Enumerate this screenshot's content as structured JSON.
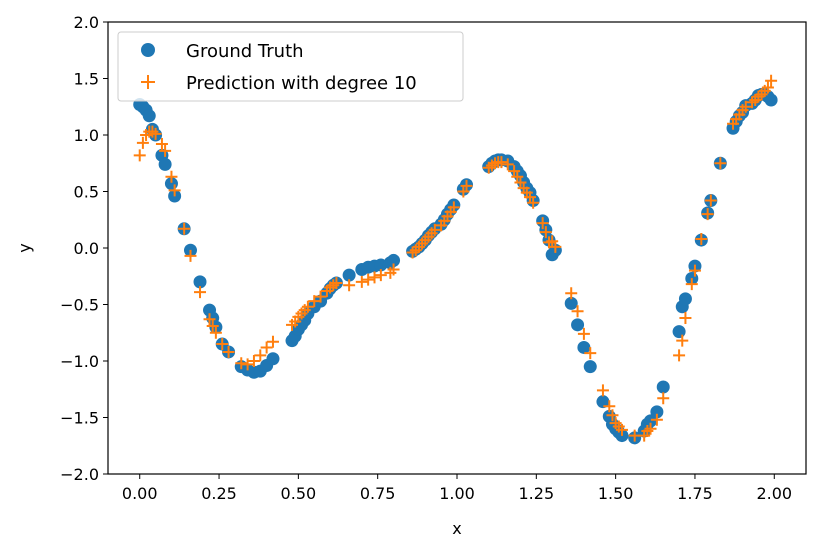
{
  "chart_data": {
    "type": "scatter",
    "title": "",
    "xlabel": "x",
    "ylabel": "y",
    "xlim": [
      -0.1,
      2.1
    ],
    "ylim": [
      -2.0,
      2.0
    ],
    "xticks": [
      0.0,
      0.25,
      0.5,
      0.75,
      1.0,
      1.25,
      1.5,
      1.75,
      2.0
    ],
    "xtick_labels": [
      "0.00",
      "0.25",
      "0.50",
      "0.75",
      "1.00",
      "1.25",
      "1.50",
      "1.75",
      "2.00"
    ],
    "yticks": [
      -2.0,
      -1.5,
      -1.0,
      -0.5,
      0.0,
      0.5,
      1.0,
      1.5,
      2.0
    ],
    "ytick_labels": [
      "−2.0",
      "−1.5",
      "−1.0",
      "−0.5",
      "0.0",
      "0.5",
      "1.0",
      "1.5",
      "2.0"
    ],
    "grid": false,
    "legend_position": "top-left",
    "x": [
      0.0,
      0.01,
      0.02,
      0.03,
      0.04,
      0.05,
      0.07,
      0.08,
      0.1,
      0.11,
      0.14,
      0.16,
      0.19,
      0.22,
      0.23,
      0.24,
      0.26,
      0.28,
      0.32,
      0.34,
      0.36,
      0.38,
      0.4,
      0.42,
      0.48,
      0.49,
      0.5,
      0.51,
      0.52,
      0.53,
      0.55,
      0.57,
      0.59,
      0.6,
      0.61,
      0.62,
      0.66,
      0.7,
      0.72,
      0.74,
      0.76,
      0.79,
      0.8,
      0.86,
      0.87,
      0.88,
      0.89,
      0.9,
      0.91,
      0.92,
      0.93,
      0.95,
      0.96,
      0.97,
      0.98,
      0.99,
      1.02,
      1.03,
      1.1,
      1.11,
      1.12,
      1.13,
      1.14,
      1.16,
      1.18,
      1.19,
      1.2,
      1.21,
      1.22,
      1.23,
      1.24,
      1.27,
      1.28,
      1.29,
      1.3,
      1.31,
      1.36,
      1.38,
      1.4,
      1.42,
      1.46,
      1.48,
      1.49,
      1.5,
      1.51,
      1.52,
      1.56,
      1.59,
      1.6,
      1.61,
      1.63,
      1.65,
      1.7,
      1.71,
      1.72,
      1.74,
      1.75,
      1.77,
      1.79,
      1.8,
      1.83,
      1.87,
      1.88,
      1.89,
      1.9,
      1.91,
      1.93,
      1.94,
      1.95,
      1.96,
      1.97,
      1.98,
      1.99
    ],
    "series": [
      {
        "name": "Ground Truth",
        "marker": "circle",
        "color": "#1f77b4",
        "values": [
          1.27,
          1.25,
          1.22,
          1.17,
          1.05,
          1.0,
          0.82,
          0.74,
          0.57,
          0.46,
          0.17,
          -0.02,
          -0.3,
          -0.55,
          -0.62,
          -0.7,
          -0.85,
          -0.92,
          -1.05,
          -1.08,
          -1.1,
          -1.09,
          -1.04,
          -0.98,
          -0.82,
          -0.78,
          -0.72,
          -0.68,
          -0.64,
          -0.58,
          -0.52,
          -0.47,
          -0.4,
          -0.36,
          -0.33,
          -0.31,
          -0.24,
          -0.19,
          -0.17,
          -0.16,
          -0.15,
          -0.13,
          -0.11,
          -0.03,
          -0.01,
          0.01,
          0.04,
          0.07,
          0.11,
          0.14,
          0.17,
          0.21,
          0.25,
          0.3,
          0.34,
          0.38,
          0.52,
          0.56,
          0.72,
          0.75,
          0.77,
          0.78,
          0.78,
          0.77,
          0.72,
          0.68,
          0.64,
          0.58,
          0.53,
          0.49,
          0.42,
          0.24,
          0.16,
          0.07,
          -0.06,
          -0.02,
          -0.49,
          -0.68,
          -0.88,
          -1.05,
          -1.36,
          -1.49,
          -1.56,
          -1.6,
          -1.63,
          -1.66,
          -1.68,
          -1.62,
          -1.56,
          -1.53,
          -1.45,
          -1.23,
          -0.74,
          -0.52,
          -0.45,
          -0.27,
          -0.16,
          0.07,
          0.31,
          0.42,
          0.75,
          1.06,
          1.12,
          1.17,
          1.2,
          1.26,
          1.28,
          1.31,
          1.35,
          1.36,
          1.36,
          1.34,
          1.31
        ]
      },
      {
        "name": "Prediction with degree 10",
        "marker": "plus",
        "color": "#ff7f0e",
        "values": [
          0.82,
          0.93,
          1.0,
          1.03,
          1.03,
          1.01,
          0.92,
          0.86,
          0.63,
          0.51,
          0.17,
          -0.07,
          -0.39,
          -0.63,
          -0.69,
          -0.75,
          -0.85,
          -0.92,
          -1.02,
          -1.03,
          -1.0,
          -0.95,
          -0.88,
          -0.83,
          -0.68,
          -0.65,
          -0.61,
          -0.58,
          -0.55,
          -0.52,
          -0.47,
          -0.43,
          -0.38,
          -0.35,
          -0.33,
          -0.31,
          -0.33,
          -0.3,
          -0.28,
          -0.26,
          -0.24,
          -0.22,
          -0.19,
          -0.04,
          -0.02,
          0.01,
          0.04,
          0.07,
          0.1,
          0.13,
          0.16,
          0.2,
          0.24,
          0.28,
          0.32,
          0.36,
          0.5,
          0.55,
          0.71,
          0.73,
          0.75,
          0.76,
          0.76,
          0.74,
          0.68,
          0.63,
          0.58,
          0.53,
          0.49,
          0.45,
          0.4,
          0.22,
          0.14,
          0.05,
          0.06,
          0.01,
          -0.4,
          -0.56,
          -0.76,
          -0.93,
          -1.26,
          -1.4,
          -1.48,
          -1.55,
          -1.58,
          -1.61,
          -1.66,
          -1.66,
          -1.62,
          -1.6,
          -1.52,
          -1.33,
          -0.95,
          -0.82,
          -0.62,
          -0.32,
          -0.2,
          0.08,
          0.3,
          0.42,
          0.75,
          1.1,
          1.14,
          1.18,
          1.22,
          1.25,
          1.29,
          1.31,
          1.34,
          1.36,
          1.39,
          1.42,
          1.48
        ]
      }
    ]
  }
}
